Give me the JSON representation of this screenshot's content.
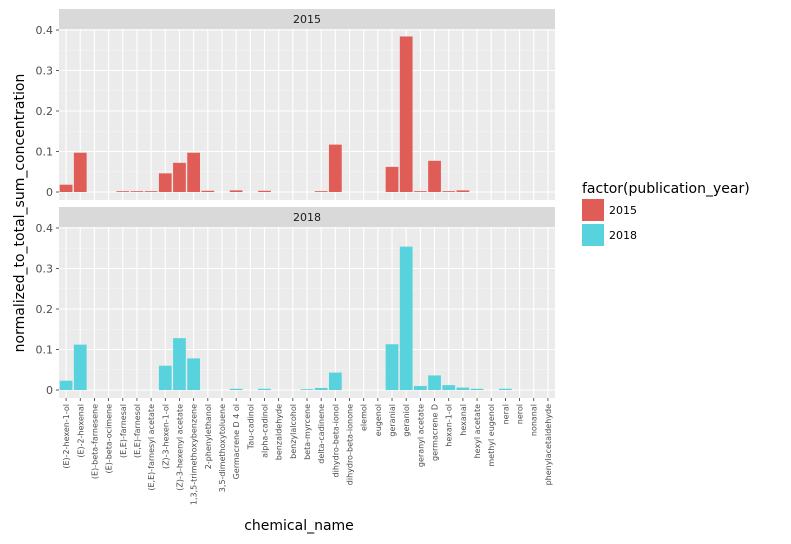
{
  "chart_data": {
    "type": "bar",
    "xlabel": "chemical_name",
    "ylabel": "normalized_to_total_sum_concentration",
    "ylim": [
      0,
      0.4
    ],
    "yticks": [
      "0",
      "0.1",
      "0.2",
      "0.3",
      "0.4"
    ],
    "yticks_values": [
      0,
      0.1,
      0.2,
      0.3,
      0.4
    ],
    "legend": {
      "title": "factor(publication_year)",
      "position": "right",
      "entries": [
        {
          "label": "2015",
          "color": "#e05d57"
        },
        {
          "label": "2018",
          "color": "#58d3dd"
        }
      ]
    },
    "categories": [
      "(E)-2-hexen-1-ol",
      "(E)-2-hexenal",
      "(E)-beta-farnesene",
      "(E)-beta-ocimene",
      "(E,E)-farnesal",
      "(E,E)-farnesol",
      "(E,E)-farnesyl acetate",
      "(Z)-3-hexen-1-ol",
      "(Z)-3-hexenyl acetate",
      "1,3,5-trimethoxybenzene",
      "2-phenylethanol",
      "3,5-dimethoxytoluene",
      "Germacrene D 4 ol",
      "Tau-cadinol",
      "alpha-cadinol",
      "benzaldehyde",
      "benzylalcohol",
      "beta-myrcene",
      "delta-cadinene",
      "dihydro-beta-ionol",
      "dihydro-beta-ionone",
      "elemol",
      "eugenol",
      "geranial",
      "geraniol",
      "geranyl acetate",
      "germacrene D",
      "hexan-1-ol",
      "hexanal",
      "hexyl acetate",
      "methyl eugenol",
      "neral",
      "nerol",
      "nonanal",
      "phenylacetaldehyde"
    ],
    "panels": [
      {
        "strip": "2015",
        "color": "#e05d57",
        "values": [
          0.018,
          0.097,
          0,
          0,
          0.001,
          0.001,
          0.001,
          0.046,
          0.072,
          0.097,
          0.003,
          0,
          0.004,
          0,
          0.003,
          0,
          0,
          0,
          0.002,
          0.117,
          0,
          0,
          0,
          0.062,
          0.384,
          0.002,
          0.077,
          0.002,
          0.004,
          0,
          0,
          0,
          0,
          0,
          0
        ]
      },
      {
        "strip": "2018",
        "color": "#58d3dd",
        "values": [
          0.023,
          0.112,
          0,
          0,
          0,
          0,
          0,
          0.06,
          0.128,
          0.078,
          0,
          0,
          0.003,
          0,
          0.003,
          0,
          0,
          0.002,
          0.005,
          0.043,
          0,
          0,
          0,
          0.113,
          0.354,
          0.01,
          0.036,
          0.012,
          0.006,
          0.003,
          0,
          0.003,
          0,
          0,
          0
        ]
      }
    ]
  }
}
